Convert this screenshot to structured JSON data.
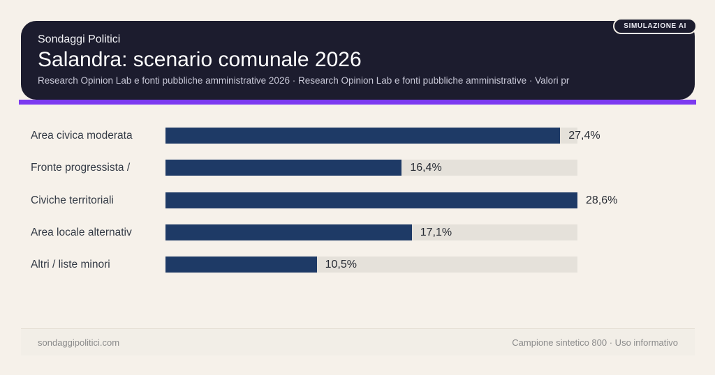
{
  "badge": {
    "label": "SIMULAZIONE AI"
  },
  "header": {
    "kicker": "Sondaggi Politici",
    "title": "Salandra: scenario comunale 2026",
    "subtitle": "Research Opinion Lab e fonti pubbliche amministrative 2026 · Research Opinion Lab e fonti pubbliche amministrative · Valori pr"
  },
  "footer": {
    "left": "sondaggipolitici.com",
    "right": "Campione sintetico 800 · Uso informativo"
  },
  "colors": {
    "page_background": "#f6f1ea",
    "card_background": "#1c1c2e",
    "accent_purple": "#7c3af0",
    "bar_navy": "#1e3a66",
    "track_gray": "#e5e1da"
  },
  "chart_data": {
    "type": "bar",
    "orientation": "horizontal",
    "title": "Salandra: scenario comunale 2026",
    "xlabel": "",
    "ylabel": "",
    "xlim": [
      0,
      28.6
    ],
    "grid": false,
    "legend": false,
    "categories": [
      "Area civica moderata",
      "Fronte progressista /",
      "Civiche territoriali",
      "Area locale alternativ",
      "Altri / liste minori"
    ],
    "values": [
      27.4,
      16.4,
      28.6,
      17.1,
      10.5
    ],
    "value_labels": [
      "27,4%",
      "16,4%",
      "28,6%",
      "17,1%",
      "10,5%"
    ],
    "unit": "%"
  }
}
